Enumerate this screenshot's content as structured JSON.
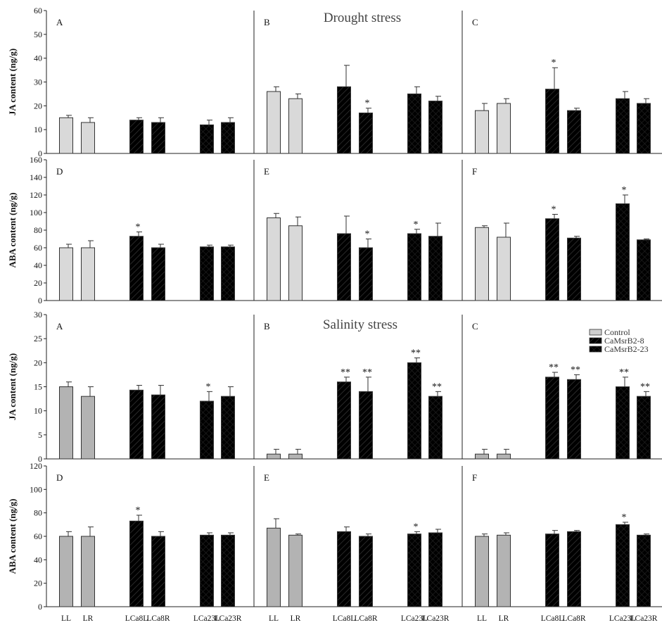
{
  "categories": [
    "LL",
    "LR",
    "LCa8L",
    "LCa8R",
    "LCa23L",
    "LCa23R"
  ],
  "legend": {
    "items": [
      "Control",
      "CaMsrB2-8",
      "CaMsrB2-23"
    ],
    "position": "top-right"
  },
  "chart_data": [
    {
      "type": "bar",
      "section_title": "Drought stress",
      "panel": "A",
      "ylabel": "JA content (ng/g)",
      "ylim": [
        0,
        60
      ],
      "yticks": [
        0,
        10,
        20,
        30,
        40,
        50,
        60
      ],
      "categories": [
        "LL",
        "LR",
        "LCa8L",
        "LCa8R",
        "LCa23L",
        "LCa23R"
      ],
      "values": [
        15,
        13,
        14,
        13,
        12,
        13
      ],
      "errors": [
        1,
        2,
        1,
        2,
        2,
        2
      ],
      "annotations": [
        "",
        "",
        "",
        "",
        "",
        ""
      ]
    },
    {
      "type": "bar",
      "panel": "B",
      "ylim": [
        0,
        60
      ],
      "categories": [
        "LL",
        "LR",
        "LCa8L",
        "LCa8R",
        "LCa23L",
        "LCa23R"
      ],
      "values": [
        26,
        23,
        28,
        17,
        25,
        22
      ],
      "errors": [
        2,
        2,
        9,
        2,
        3,
        2
      ],
      "annotations": [
        "",
        "",
        "",
        "*",
        "",
        ""
      ]
    },
    {
      "type": "bar",
      "panel": "C",
      "ylim": [
        0,
        60
      ],
      "categories": [
        "LL",
        "LR",
        "LCa8L",
        "LCa8R",
        "LCa23L",
        "LCa23R"
      ],
      "values": [
        18,
        21,
        27,
        18,
        23,
        21
      ],
      "errors": [
        3,
        2,
        9,
        1,
        3,
        2
      ],
      "annotations": [
        "",
        "",
        "*",
        "",
        "",
        ""
      ]
    },
    {
      "type": "bar",
      "panel": "D",
      "ylabel": "ABA content (ng/g)",
      "ylim": [
        0,
        160
      ],
      "yticks": [
        0,
        20,
        40,
        60,
        80,
        100,
        120,
        140,
        160
      ],
      "categories": [
        "LL",
        "LR",
        "LCa8L",
        "LCa8R",
        "LCa23L",
        "LCa23R"
      ],
      "values": [
        60,
        60,
        73,
        60,
        61,
        61
      ],
      "errors": [
        4,
        8,
        5,
        4,
        2,
        2
      ],
      "annotations": [
        "",
        "",
        "*",
        "",
        "",
        ""
      ]
    },
    {
      "type": "bar",
      "panel": "E",
      "ylim": [
        0,
        160
      ],
      "categories": [
        "LL",
        "LR",
        "LCa8L",
        "LCa8R",
        "LCa23L",
        "LCa23R"
      ],
      "values": [
        94,
        85,
        76,
        60,
        76,
        73
      ],
      "errors": [
        5,
        10,
        20,
        10,
        5,
        15
      ],
      "annotations": [
        "",
        "",
        "",
        "*",
        "*",
        ""
      ]
    },
    {
      "type": "bar",
      "panel": "F",
      "ylim": [
        0,
        160
      ],
      "categories": [
        "LL",
        "LR",
        "LCa8L",
        "LCa8R",
        "LCa23L",
        "LCa23R"
      ],
      "values": [
        83,
        72,
        93,
        71,
        110,
        69
      ],
      "errors": [
        2,
        16,
        5,
        2,
        10,
        1
      ],
      "annotations": [
        "",
        "",
        "*",
        "",
        "*",
        ""
      ]
    },
    {
      "type": "bar",
      "section_title": "Salinity stress",
      "panel": "A",
      "ylabel": "JA content (ng/g)",
      "ylim": [
        0,
        30
      ],
      "yticks": [
        0,
        5,
        10,
        15,
        20,
        25,
        30
      ],
      "categories": [
        "LL",
        "LR",
        "LCa8L",
        "LCa8R",
        "LCa23L",
        "LCa23R"
      ],
      "values": [
        15,
        13,
        14.3,
        13.3,
        12,
        13
      ],
      "errors": [
        1,
        2,
        1,
        2,
        2,
        2
      ],
      "annotations": [
        "",
        "",
        "",
        "",
        "*",
        ""
      ]
    },
    {
      "type": "bar",
      "panel": "B",
      "ylim": [
        0,
        30
      ],
      "categories": [
        "LL",
        "LR",
        "LCa8L",
        "LCa8R",
        "LCa23L",
        "LCa23R"
      ],
      "values": [
        1,
        1,
        16,
        14,
        20,
        13
      ],
      "errors": [
        1,
        1,
        1,
        3,
        1,
        1
      ],
      "annotations": [
        "",
        "",
        "**",
        "**",
        "**",
        "**"
      ]
    },
    {
      "type": "bar",
      "panel": "C",
      "ylim": [
        0,
        30
      ],
      "categories": [
        "LL",
        "LR",
        "LCa8L",
        "LCa8R",
        "LCa23L",
        "LCa23R"
      ],
      "values": [
        1,
        1,
        17,
        16.5,
        15,
        13
      ],
      "errors": [
        1,
        1,
        1,
        1,
        2,
        1
      ],
      "annotations": [
        "",
        "",
        "**",
        "**",
        "**",
        "**"
      ]
    },
    {
      "type": "bar",
      "panel": "D",
      "ylabel": "ABA content (ng/g)",
      "ylim": [
        0,
        120
      ],
      "yticks": [
        0,
        20,
        40,
        60,
        80,
        100,
        120
      ],
      "categories": [
        "LL",
        "LR",
        "LCa8L",
        "LCa8R",
        "LCa23L",
        "LCa23R"
      ],
      "values": [
        60,
        60,
        73,
        60,
        61,
        61
      ],
      "errors": [
        4,
        8,
        5,
        4,
        2,
        2
      ],
      "annotations": [
        "",
        "",
        "*",
        "",
        "",
        ""
      ]
    },
    {
      "type": "bar",
      "panel": "E",
      "ylim": [
        0,
        120
      ],
      "categories": [
        "LL",
        "LR",
        "LCa8L",
        "LCa8R",
        "LCa23L",
        "LCa23R"
      ],
      "values": [
        67,
        61,
        64,
        60,
        62,
        63
      ],
      "errors": [
        8,
        1,
        4,
        2,
        2,
        3
      ],
      "annotations": [
        "",
        "",
        "",
        "",
        "*",
        ""
      ]
    },
    {
      "type": "bar",
      "panel": "F",
      "ylim": [
        0,
        120
      ],
      "categories": [
        "LL",
        "LR",
        "LCa8L",
        "LCa8R",
        "LCa23L",
        "LCa23R"
      ],
      "values": [
        60,
        61,
        62,
        64,
        70,
        61
      ],
      "errors": [
        2,
        2,
        3,
        1,
        2,
        1
      ],
      "annotations": [
        "",
        "",
        "",
        "",
        "*",
        ""
      ]
    }
  ]
}
